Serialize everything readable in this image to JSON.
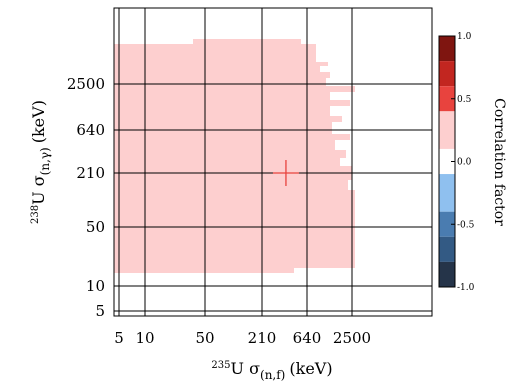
{
  "chart_data": {
    "type": "heatmap",
    "title": "",
    "xlabel": {
      "main": "U σ",
      "superscript": "235",
      "subscript": "(n,f)",
      "unit": "(keV)"
    },
    "ylabel": {
      "main": "U σ",
      "superscript": "238",
      "subscript": "(n,γ)",
      "unit": "(keV)"
    },
    "x_ticks": [
      "5",
      "10",
      "50",
      "210",
      "640",
      "2500"
    ],
    "y_ticks": [
      "5",
      "10",
      "50",
      "210",
      "640",
      "2500"
    ],
    "grid": true,
    "marker": {
      "symbol": "+",
      "x_keV": 380,
      "y_keV": 210,
      "color": "#e8433e"
    },
    "filled_region_value": 0.25,
    "filled_region": {
      "x_range_keV": [
        3,
        2800
      ],
      "y_range_keV": [
        15,
        18000
      ]
    },
    "colorbar": {
      "title": "Correlation factor",
      "ticks": [
        "1.0",
        "0.5",
        "0.0",
        "-0.5",
        "-1.0"
      ],
      "range": [
        -1.0,
        1.0
      ],
      "segments": [
        {
          "from": 0.8,
          "to": 1.0,
          "color": "#7f1510"
        },
        {
          "from": 0.6,
          "to": 0.8,
          "color": "#c22620"
        },
        {
          "from": 0.4,
          "to": 0.6,
          "color": "#e8433e"
        },
        {
          "from": 0.1,
          "to": 0.4,
          "color": "#fdcfcf"
        },
        {
          "from": -0.1,
          "to": 0.1,
          "color": "#ffffff"
        },
        {
          "from": -0.4,
          "to": -0.1,
          "color": "#8fc0ef"
        },
        {
          "from": -0.6,
          "to": -0.4,
          "color": "#4a7cb0"
        },
        {
          "from": -0.8,
          "to": -0.6,
          "color": "#335a84"
        },
        {
          "from": -1.0,
          "to": -0.8,
          "color": "#253449"
        }
      ]
    }
  }
}
